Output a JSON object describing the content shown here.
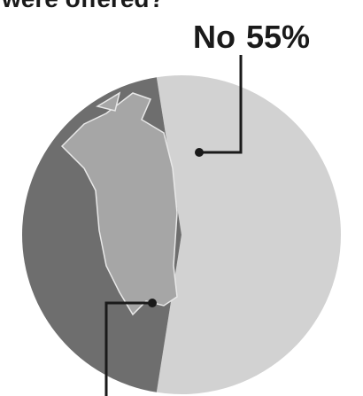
{
  "chart_data": {
    "type": "pie",
    "title": "were offered?",
    "categories": [
      "No",
      null
    ],
    "values": [
      55,
      45
    ],
    "value_labels": [
      "55%",
      null
    ],
    "colors": [
      "#d2d2d2",
      "#6e6e6e"
    ]
  }
}
